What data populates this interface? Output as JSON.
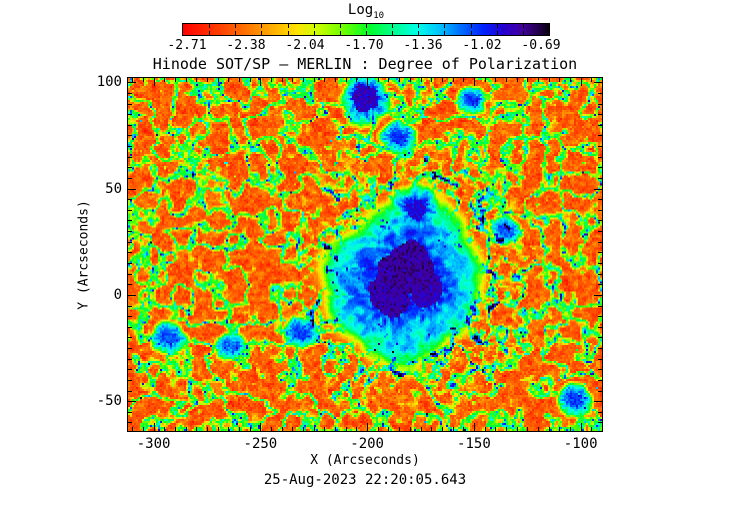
{
  "page": {
    "background": "#ffffff",
    "frame_color": "#000000"
  },
  "chart_data": {
    "type": "heatmap",
    "title": "Hinode SOT/SP — MERLIN : Degree of Polarization",
    "xlabel": "X (Arcseconds)",
    "ylabel": "Y (Arcseconds)",
    "timestamp": "25-Aug-2023 22:20:05.643",
    "colorbar": {
      "title_base": "Log",
      "title_subscript": "10",
      "tick_labels": [
        "-2.71",
        "-2.38",
        "-2.04",
        "-1.70",
        "-1.36",
        "-1.02",
        "-0.69"
      ],
      "tick_values": [
        -2.71,
        -2.38,
        -2.04,
        -1.7,
        -1.36,
        -1.02,
        -0.69
      ],
      "n_intervals": 14
    },
    "value_range": [
      -2.88,
      -0.52
    ],
    "xlim": [
      -312,
      -90
    ],
    "ylim": [
      -64,
      102
    ],
    "x_major_ticks": [
      -300,
      -250,
      -200,
      -150,
      -100
    ],
    "x_tick_labels": [
      "-300",
      "-250",
      "-200",
      "-150",
      "-100"
    ],
    "y_major_ticks": [
      -50,
      0,
      50,
      100
    ],
    "y_tick_labels": [
      "-50",
      "0",
      "50",
      "100"
    ],
    "minor_tick_step": 5,
    "colormap": [
      [
        0.0,
        "#ff0000"
      ],
      [
        0.09,
        "#ff3800"
      ],
      [
        0.17,
        "#ff7100"
      ],
      [
        0.24,
        "#ffaa00"
      ],
      [
        0.31,
        "#ffe300"
      ],
      [
        0.37,
        "#c8ff00"
      ],
      [
        0.44,
        "#6aff00"
      ],
      [
        0.51,
        "#00ff2a"
      ],
      [
        0.575,
        "#00ff8d"
      ],
      [
        0.64,
        "#00ffe8"
      ],
      [
        0.7,
        "#00c3ff"
      ],
      [
        0.755,
        "#0072ff"
      ],
      [
        0.82,
        "#0022ff"
      ],
      [
        0.875,
        "#2400cf"
      ],
      [
        0.925,
        "#4200a0"
      ],
      [
        0.965,
        "#260055"
      ],
      [
        1.0,
        "#08000e"
      ]
    ],
    "field": {
      "quiet_sun_log10_dop": -2.75,
      "network_lane_log10_dop": -1.9,
      "network_knot_log10_dop": -1.1,
      "penumbra_log10_dop_inner": -1.02,
      "penumbra_log10_dop_outer": -1.45
    },
    "features": [
      {
        "name": "sunspot-umbra-main",
        "x": -181,
        "y": 13,
        "ru": 12,
        "rp": 29,
        "ro": 40,
        "core": -0.7
      },
      {
        "name": "sunspot-umbra-southwest-lobe",
        "x": -190,
        "y": 0,
        "ru": 9,
        "rp": 25,
        "ro": 35,
        "core": -0.73
      },
      {
        "name": "sunspot-umbra-east-lobe",
        "x": -172,
        "y": 3,
        "ru": 8,
        "rp": 23,
        "ro": 32,
        "core": -0.75
      },
      {
        "name": "attached-pore-north",
        "x": -177,
        "y": 40,
        "ru": 5,
        "rp": 10,
        "ro": 15,
        "core": -0.85
      },
      {
        "name": "pore-top",
        "x": -201,
        "y": 93,
        "ru": 6,
        "rp": 10,
        "ro": 14,
        "core": -0.78
      },
      {
        "name": "magnetic-knot",
        "x": -151,
        "y": 92,
        "ru": 2.5,
        "rp": 6,
        "ro": 9,
        "core": -1.0
      },
      {
        "name": "magnetic-knot",
        "x": -185,
        "y": 74,
        "ru": 3,
        "rp": 7,
        "ro": 10,
        "core": -0.95
      },
      {
        "name": "magnetic-knot",
        "x": -231,
        "y": -18,
        "ru": 3,
        "rp": 7,
        "ro": 10,
        "core": -1.0
      },
      {
        "name": "magnetic-knot",
        "x": -293,
        "y": -20,
        "ru": 3,
        "rp": 7,
        "ro": 10,
        "core": -1.05
      },
      {
        "name": "magnetic-knot",
        "x": -264,
        "y": -24,
        "ru": 2.5,
        "rp": 6,
        "ro": 9,
        "core": -1.1
      },
      {
        "name": "magnetic-knot",
        "x": -135,
        "y": 30,
        "ru": 2.5,
        "rp": 6,
        "ro": 9,
        "core": -1.05
      },
      {
        "name": "magnetic-knot",
        "x": -103,
        "y": -49,
        "ru": 3,
        "rp": 7,
        "ro": 10,
        "core": -1.0
      }
    ]
  }
}
